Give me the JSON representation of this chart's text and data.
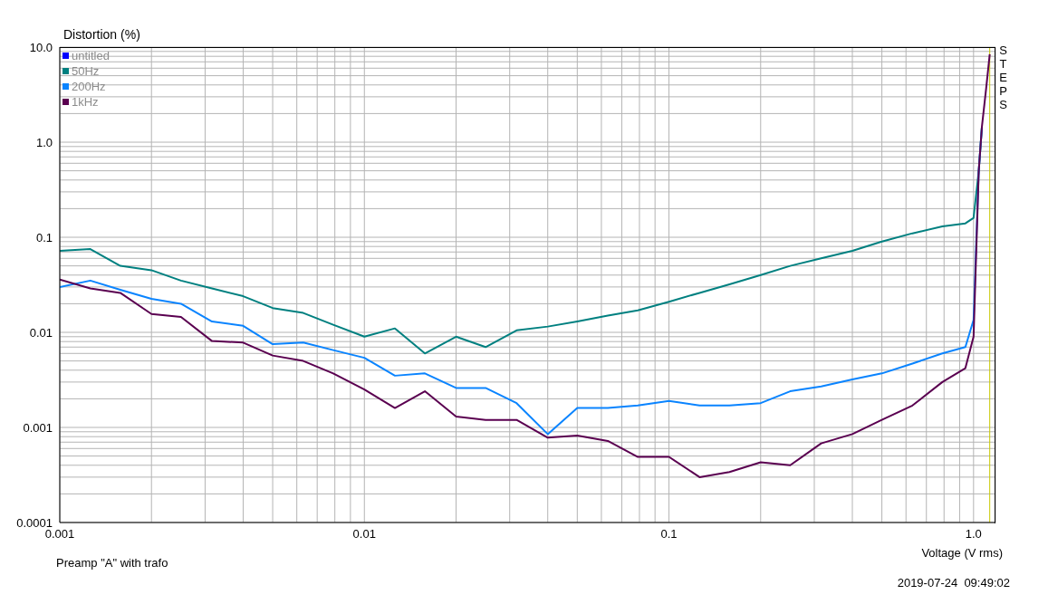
{
  "chart_data": {
    "type": "line",
    "ylabel": "Distortion (%)",
    "xlabel": "Voltage (V rms)",
    "annotations": [
      "Preamp \"A\" with trafo",
      "2019-07-24  09:49:02",
      "STEPS"
    ],
    "log": "xy",
    "grid": true,
    "legend": "top left",
    "marker": "none",
    "line_style": "solid",
    "xlim": [
      0.001,
      1.18
    ],
    "ylim": [
      0.0001,
      10
    ],
    "xticks": [
      0.001,
      {
        "value": 0.002,
        "label": null
      },
      {
        "value": 0.003,
        "label": null
      },
      {
        "value": 0.004,
        "label": null
      },
      {
        "value": 0.005,
        "label": null
      },
      {
        "value": 0.006,
        "label": null
      },
      {
        "value": 0.007,
        "label": null
      },
      {
        "value": 0.008,
        "label": null
      },
      {
        "value": 0.009,
        "label": null
      },
      0.01,
      {
        "value": 0.02,
        "label": null
      },
      {
        "value": 0.03,
        "label": null
      },
      {
        "value": 0.04,
        "label": null
      },
      {
        "value": 0.05,
        "label": null
      },
      {
        "value": 0.06,
        "label": null
      },
      {
        "value": 0.07,
        "label": null
      },
      {
        "value": 0.08,
        "label": null
      },
      {
        "value": 0.09,
        "label": null
      },
      0.1,
      {
        "value": 0.2,
        "label": null
      },
      {
        "value": 0.3,
        "label": null
      },
      {
        "value": 0.4,
        "label": null
      },
      {
        "value": 0.5,
        "label": null
      },
      {
        "value": 0.6,
        "label": null
      },
      {
        "value": 0.7,
        "label": null
      },
      {
        "value": 0.8,
        "label": null
      },
      {
        "value": 0.9,
        "label": null
      },
      {
        "value": 1,
        "label": "1.0"
      }
    ],
    "yticks": [
      0.0001,
      {
        "value": 0.0002,
        "label": null
      },
      {
        "value": 0.0003,
        "label": null
      },
      {
        "value": 0.0004,
        "label": null
      },
      {
        "value": 0.0005,
        "label": null
      },
      {
        "value": 0.0006,
        "label": null
      },
      {
        "value": 0.0007,
        "label": null
      },
      {
        "value": 0.0008,
        "label": null
      },
      {
        "value": 0.0009,
        "label": null
      },
      0.001,
      {
        "value": 0.002,
        "label": null
      },
      {
        "value": 0.003,
        "label": null
      },
      {
        "value": 0.004,
        "label": null
      },
      {
        "value": 0.005,
        "label": null
      },
      {
        "value": 0.006,
        "label": null
      },
      {
        "value": 0.007,
        "label": null
      },
      {
        "value": 0.008,
        "label": null
      },
      {
        "value": 0.009,
        "label": null
      },
      0.01,
      {
        "value": 0.02,
        "label": null
      },
      {
        "value": 0.03,
        "label": null
      },
      {
        "value": 0.04,
        "label": null
      },
      {
        "value": 0.05,
        "label": null
      },
      {
        "value": 0.06,
        "label": null
      },
      {
        "value": 0.07,
        "label": null
      },
      {
        "value": 0.08,
        "label": null
      },
      {
        "value": 0.09,
        "label": null
      },
      0.1,
      {
        "value": 0.2,
        "label": null
      },
      {
        "value": 0.3,
        "label": null
      },
      {
        "value": 0.4,
        "label": null
      },
      {
        "value": 0.5,
        "label": null
      },
      {
        "value": 0.6,
        "label": null
      },
      {
        "value": 0.7,
        "label": null
      },
      {
        "value": 0.8,
        "label": null
      },
      {
        "value": 0.9,
        "label": null
      },
      {
        "value": 1,
        "label": "1.0"
      },
      {
        "value": 2,
        "label": null
      },
      {
        "value": 3,
        "label": null
      },
      {
        "value": 4,
        "label": null
      },
      {
        "value": 5,
        "label": null
      },
      {
        "value": 6,
        "label": null
      },
      {
        "value": 7,
        "label": null
      },
      {
        "value": 8,
        "label": null
      },
      {
        "value": 9,
        "label": null
      },
      {
        "value": 10,
        "label": "10.0"
      }
    ],
    "ref_lines": [
      {
        "axis": "x",
        "value": 1.13,
        "color": "#c8c800"
      }
    ],
    "x": [
      0.001,
      0.00126,
      0.00158,
      0.002,
      0.0025,
      0.00316,
      0.004,
      0.005,
      0.0063,
      0.0079,
      0.01,
      0.0126,
      0.0158,
      0.02,
      0.025,
      0.0316,
      0.04,
      0.05,
      0.063,
      0.079,
      0.1,
      0.126,
      0.158,
      0.2,
      0.25,
      0.316,
      0.4,
      0.5,
      0.63,
      0.79,
      0.94,
      1.0,
      1.04,
      1.065,
      1.1,
      1.13
    ],
    "series": [
      {
        "name": "untitled",
        "color": "#0000ff",
        "values": [
          null,
          null,
          null,
          null,
          null,
          null,
          null,
          null,
          null,
          null,
          null,
          null,
          null,
          null,
          null,
          null,
          null,
          null,
          null,
          null,
          null,
          null,
          null,
          null,
          null,
          null,
          null,
          null,
          null,
          null,
          null,
          null,
          null,
          null,
          null,
          null
        ]
      },
      {
        "name": "50Hz",
        "color": "#008080",
        "values": [
          0.072,
          0.075,
          0.05,
          0.045,
          0.035,
          0.029,
          0.024,
          0.018,
          0.016,
          0.012,
          0.009,
          0.011,
          0.006,
          0.009,
          0.007,
          0.0105,
          0.0115,
          0.013,
          0.015,
          0.017,
          0.021,
          0.026,
          0.032,
          0.04,
          0.05,
          0.06,
          0.072,
          0.09,
          0.11,
          0.13,
          0.14,
          0.16,
          0.5,
          1.45,
          null,
          null
        ]
      },
      {
        "name": "200Hz",
        "color": "#0a84ff",
        "values": [
          0.03,
          0.035,
          0.028,
          0.0225,
          0.02,
          0.013,
          0.0117,
          0.0075,
          0.0078,
          0.0065,
          0.0054,
          0.0035,
          0.0037,
          0.0026,
          0.0026,
          0.0018,
          0.00085,
          0.0016,
          0.0016,
          0.0017,
          0.0019,
          0.0017,
          0.0017,
          0.0018,
          0.0024,
          0.0027,
          0.0032,
          0.0037,
          0.0047,
          0.006,
          0.007,
          0.0135,
          0.5,
          1.45,
          null,
          null
        ]
      },
      {
        "name": "1kHz",
        "color": "#5a0050",
        "values": [
          0.036,
          0.029,
          0.026,
          0.0156,
          0.0145,
          0.0081,
          0.0078,
          0.0057,
          0.005,
          0.0037,
          0.0025,
          0.0016,
          0.0024,
          0.0013,
          0.0012,
          0.0012,
          0.00078,
          0.00082,
          0.00072,
          0.00049,
          0.00049,
          0.0003,
          0.00034,
          0.00043,
          0.0004,
          0.00068,
          0.00085,
          0.0012,
          0.0017,
          0.003,
          0.0042,
          0.009,
          0.5,
          1.45,
          3.7,
          8.4
        ]
      }
    ]
  }
}
